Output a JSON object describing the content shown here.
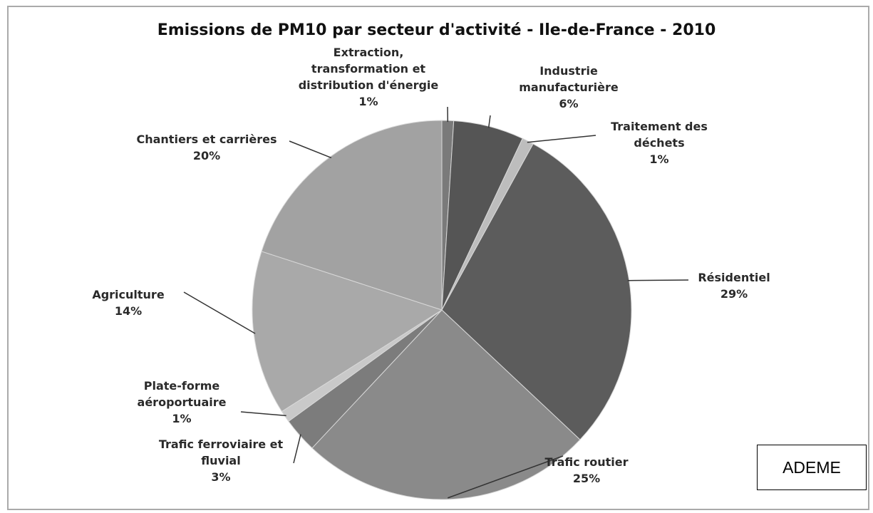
{
  "chart_data": {
    "type": "pie",
    "title": "Emissions de PM10 par secteur d'activité - Ile-de-France - 2010",
    "categories": [
      "Extraction, transformation et distribution d'énergie",
      "Industrie manufacturière",
      "Traitement des déchets",
      "Résidentiel",
      "Trafic routier",
      "Trafic ferroviaire et fluvial",
      "Plate-forme aéroportuaire",
      "Agriculture",
      "Chantiers et carrières"
    ],
    "values": [
      1,
      6,
      1,
      29,
      25,
      3,
      1,
      14,
      20
    ],
    "value_labels": [
      "1%",
      "6%",
      "1%",
      "29%",
      "25%",
      "3%",
      "1%",
      "14%",
      "20%"
    ],
    "colors": [
      "#7a7a7a",
      "#555555",
      "#bdbdbd",
      "#5c5c5c",
      "#8a8a8a",
      "#7c7c7c",
      "#c9c9c9",
      "#a9a9a9",
      "#a2a2a2"
    ],
    "source": "ADEME"
  }
}
